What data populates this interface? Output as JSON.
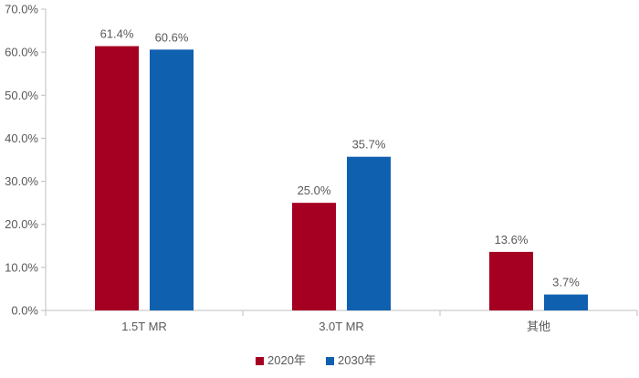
{
  "chart_data": {
    "type": "bar",
    "categories": [
      "1.5T MR",
      "3.0T MR",
      "其他"
    ],
    "series": [
      {
        "name": "2020年",
        "values": [
          61.4,
          25.0,
          13.6
        ],
        "labels": [
          "61.4%",
          "25.0%",
          "13.6%"
        ],
        "color": "#A50021"
      },
      {
        "name": "2030年",
        "values": [
          60.6,
          35.7,
          3.7
        ],
        "labels": [
          "60.6%",
          "35.7%",
          "3.7%"
        ],
        "color": "#1060B0"
      }
    ],
    "y_ticks": [
      0,
      10,
      20,
      30,
      40,
      50,
      60,
      70
    ],
    "y_tick_labels": [
      "0.0%",
      "10.0%",
      "20.0%",
      "30.0%",
      "40.0%",
      "50.0%",
      "60.0%",
      "70.0%"
    ],
    "ylim": [
      0,
      70
    ],
    "title": "",
    "xlabel": "",
    "ylabel": "",
    "grid": false,
    "legend_position": "bottom-center"
  },
  "colors": {
    "axis": "#BFBFBF",
    "text": "#595959"
  }
}
